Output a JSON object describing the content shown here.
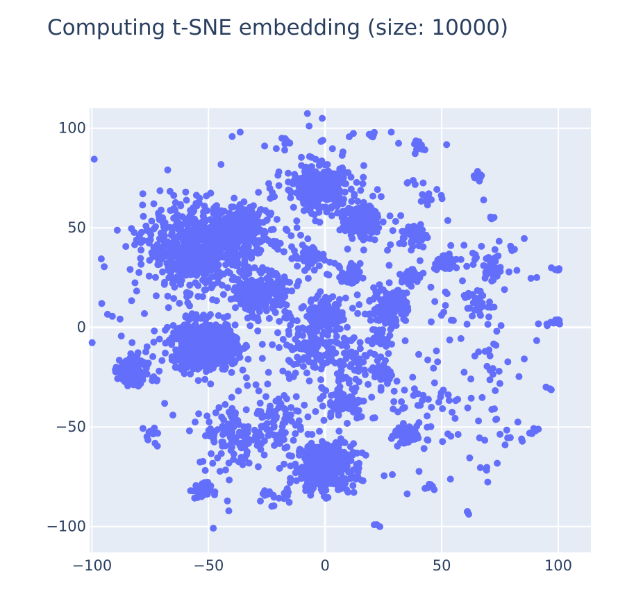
{
  "chart_data": {
    "type": "scatter",
    "title": "Computing t-SNE embedding (size: 10000)",
    "xlabel": "",
    "ylabel": "",
    "xlim": [
      -101,
      114
    ],
    "ylim": [
      -113,
      110
    ],
    "xticks": [
      -100,
      -50,
      0,
      50,
      100
    ],
    "yticks": [
      -100,
      -50,
      0,
      50,
      100
    ],
    "xtick_labels": [
      "−100",
      "−50",
      "0",
      "50",
      "100"
    ],
    "ytick_labels": [
      "−100",
      "−50",
      "0",
      "50",
      "100"
    ],
    "grid": true,
    "marker_color": "#636efa",
    "plot_bg": "#e5ecf6",
    "grid_color": "#ffffff",
    "n_points": 10000,
    "clusters": [
      {
        "cx": 0,
        "cy": -70,
        "sx": 6,
        "sy": 6,
        "n": 450
      },
      {
        "cx": -53,
        "cy": 40,
        "sx": 12,
        "sy": 10,
        "n": 750
      },
      {
        "cx": -37,
        "cy": 48,
        "sx": 7,
        "sy": 6,
        "n": 200
      },
      {
        "cx": -52,
        "cy": -9,
        "sx": 7,
        "sy": 6,
        "n": 650
      },
      {
        "cx": -27,
        "cy": 17,
        "sx": 5,
        "sy": 5,
        "n": 230
      },
      {
        "cx": -3,
        "cy": 70,
        "sx": 7,
        "sy": 6,
        "n": 280
      },
      {
        "cx": 15,
        "cy": 53,
        "sx": 4,
        "sy": 4,
        "n": 130
      },
      {
        "cx": -83,
        "cy": -21,
        "sx": 3,
        "sy": 4,
        "n": 90
      },
      {
        "cx": 28,
        "cy": 10,
        "sx": 4,
        "sy": 5,
        "n": 110
      },
      {
        "cx": 0,
        "cy": 7,
        "sx": 4,
        "sy": 4,
        "n": 110
      },
      {
        "cx": -5,
        "cy": -10,
        "sx": 6,
        "sy": 7,
        "n": 110
      },
      {
        "cx": 35,
        "cy": -54,
        "sx": 3,
        "sy": 2,
        "n": 70
      },
      {
        "cx": 52,
        "cy": 32,
        "sx": 2,
        "sy": 2,
        "n": 50
      },
      {
        "cx": -53,
        "cy": -82,
        "sx": 2,
        "sy": 2,
        "n": 45
      },
      {
        "cx": 11,
        "cy": 26,
        "sx": 2,
        "sy": 3,
        "n": 45
      },
      {
        "cx": -7,
        "cy": 35,
        "sx": 3,
        "sy": 3,
        "n": 45
      },
      {
        "cx": 38,
        "cy": 46,
        "sx": 3,
        "sy": 3,
        "n": 45
      },
      {
        "cx": 25,
        "cy": -23,
        "sx": 2,
        "sy": 3,
        "n": 35
      },
      {
        "cx": 8,
        "cy": -38,
        "sx": 5,
        "sy": 4,
        "n": 60
      },
      {
        "cx": -35,
        "cy": -55,
        "sx": 10,
        "sy": 8,
        "n": 130
      },
      {
        "cx": -20,
        "cy": -45,
        "sx": 6,
        "sy": 6,
        "n": 50
      },
      {
        "cx": 10,
        "cy": -20,
        "sx": 4,
        "sy": 8,
        "n": 55
      },
      {
        "cx": 24,
        "cy": -5,
        "sx": 2,
        "sy": 3,
        "n": 25
      },
      {
        "cx": 37,
        "cy": 26,
        "sx": 2,
        "sy": 2,
        "n": 25
      },
      {
        "cx": 65,
        "cy": 12,
        "sx": 3,
        "sy": 3,
        "n": 30
      },
      {
        "cx": 71,
        "cy": 30,
        "sx": 2,
        "sy": 3,
        "n": 30
      },
      {
        "cx": -17,
        "cy": 93,
        "sx": 1,
        "sy": 1,
        "n": 12
      },
      {
        "cx": 66,
        "cy": 76,
        "sx": 1,
        "sy": 1,
        "n": 12
      },
      {
        "cx": 40,
        "cy": 90,
        "sx": 1,
        "sy": 2,
        "n": 12
      },
      {
        "cx": 20,
        "cy": 97,
        "sx": 1,
        "sy": 1,
        "n": 6
      },
      {
        "cx": 38,
        "cy": -42,
        "sx": 14,
        "sy": 14,
        "n": 60
      },
      {
        "cx": 60,
        "cy": 10,
        "sx": 18,
        "sy": 28,
        "n": 80
      },
      {
        "cx": -30,
        "cy": 0,
        "sx": 35,
        "sy": 45,
        "n": 150
      },
      {
        "cx": 10,
        "cy": 40,
        "sx": 25,
        "sy": 40,
        "n": 100
      },
      {
        "cx": 70,
        "cy": -50,
        "sx": 6,
        "sy": 6,
        "n": 15
      },
      {
        "cx": 98,
        "cy": 3,
        "sx": 2,
        "sy": 1,
        "n": 10
      },
      {
        "cx": 100,
        "cy": 29,
        "sx": 1,
        "sy": 1,
        "n": 6
      },
      {
        "cx": 89,
        "cy": -52,
        "sx": 1,
        "sy": 1,
        "n": 5
      },
      {
        "cx": 60,
        "cy": -92,
        "sx": 1,
        "sy": 1,
        "n": 3
      },
      {
        "cx": 21,
        "cy": -100,
        "sx": 1,
        "sy": 1,
        "n": 3
      },
      {
        "cx": -74,
        "cy": -55,
        "sx": 2,
        "sy": 3,
        "n": 10
      },
      {
        "cx": -22,
        "cy": -84,
        "sx": 4,
        "sy": 3,
        "n": 20
      },
      {
        "cx": 45,
        "cy": -80,
        "sx": 2,
        "sy": 1,
        "n": 8
      },
      {
        "cx": 69,
        "cy": -71,
        "sx": 1,
        "sy": 1,
        "n": 3
      },
      {
        "cx": 96,
        "cy": -30,
        "sx": 1,
        "sy": 1,
        "n": 3
      },
      {
        "cx": 71,
        "cy": 55,
        "sx": 1,
        "sy": 1,
        "n": 4
      },
      {
        "cx": 80,
        "cy": 39,
        "sx": 1,
        "sy": 1,
        "n": 4
      },
      {
        "cx": 45,
        "cy": 67,
        "sx": 2,
        "sy": 4,
        "n": 10
      },
      {
        "cx": 37,
        "cy": 72,
        "sx": 1,
        "sy": 1,
        "n": 4
      },
      {
        "cx": -73,
        "cy": -26,
        "sx": 1,
        "sy": 1,
        "n": 5
      }
    ]
  }
}
